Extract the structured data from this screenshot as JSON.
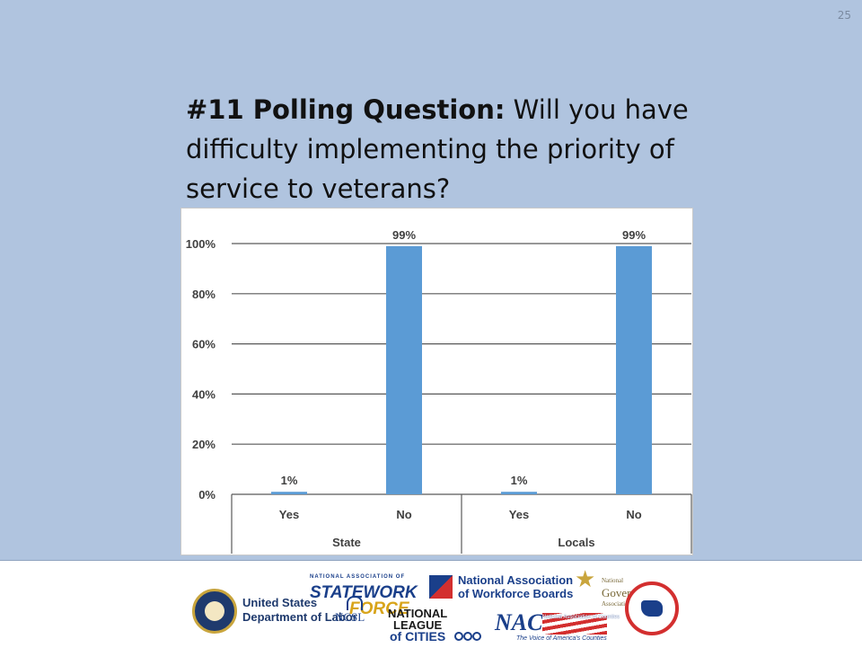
{
  "page_number": "25",
  "title": {
    "bold": "#11 Polling Question:",
    "rest": " Will you have difficulty implementing the priority of service to veterans?"
  },
  "colors": {
    "background": "#b0c4df",
    "bar": "#5b9bd5",
    "gridline": "#595959",
    "axis_text": "#404040"
  },
  "chart_data": {
    "type": "bar",
    "categories": [
      "Yes",
      "No",
      "Yes",
      "No"
    ],
    "groups": [
      {
        "label": "State",
        "categories": [
          "Yes",
          "No"
        ]
      },
      {
        "label": "Locals",
        "categories": [
          "Yes",
          "No"
        ]
      }
    ],
    "series": [
      {
        "values": [
          1,
          99,
          1,
          99
        ]
      }
    ],
    "data_labels": [
      "1%",
      "99%",
      "1%",
      "99%"
    ],
    "yticks": [
      "0%",
      "20%",
      "40%",
      "60%",
      "80%",
      "100%"
    ],
    "ylim": [
      0,
      100
    ],
    "title": "",
    "xlabel": "",
    "ylabel": "",
    "grid": true,
    "legend": "none"
  },
  "footer": {
    "dol": [
      "United States",
      "Department of Labor"
    ],
    "statework": {
      "top": "STATEWORK",
      "bottom": "FORCE",
      "sub": "NATIONAL ASSOCIATION OF"
    },
    "nawb": [
      "National Association",
      "of Workforce Boards"
    ],
    "nga": {
      "top": "National",
      "main": "Governors",
      "bottom": "Association"
    },
    "ncsl": "NCSL",
    "nlc": [
      "NATIONAL",
      "LEAGUE",
      "of CITIES"
    ],
    "naco": {
      "name": "NACo",
      "sub": "National Association of Counties",
      "tagline": "The Voice of America's Counties"
    }
  }
}
